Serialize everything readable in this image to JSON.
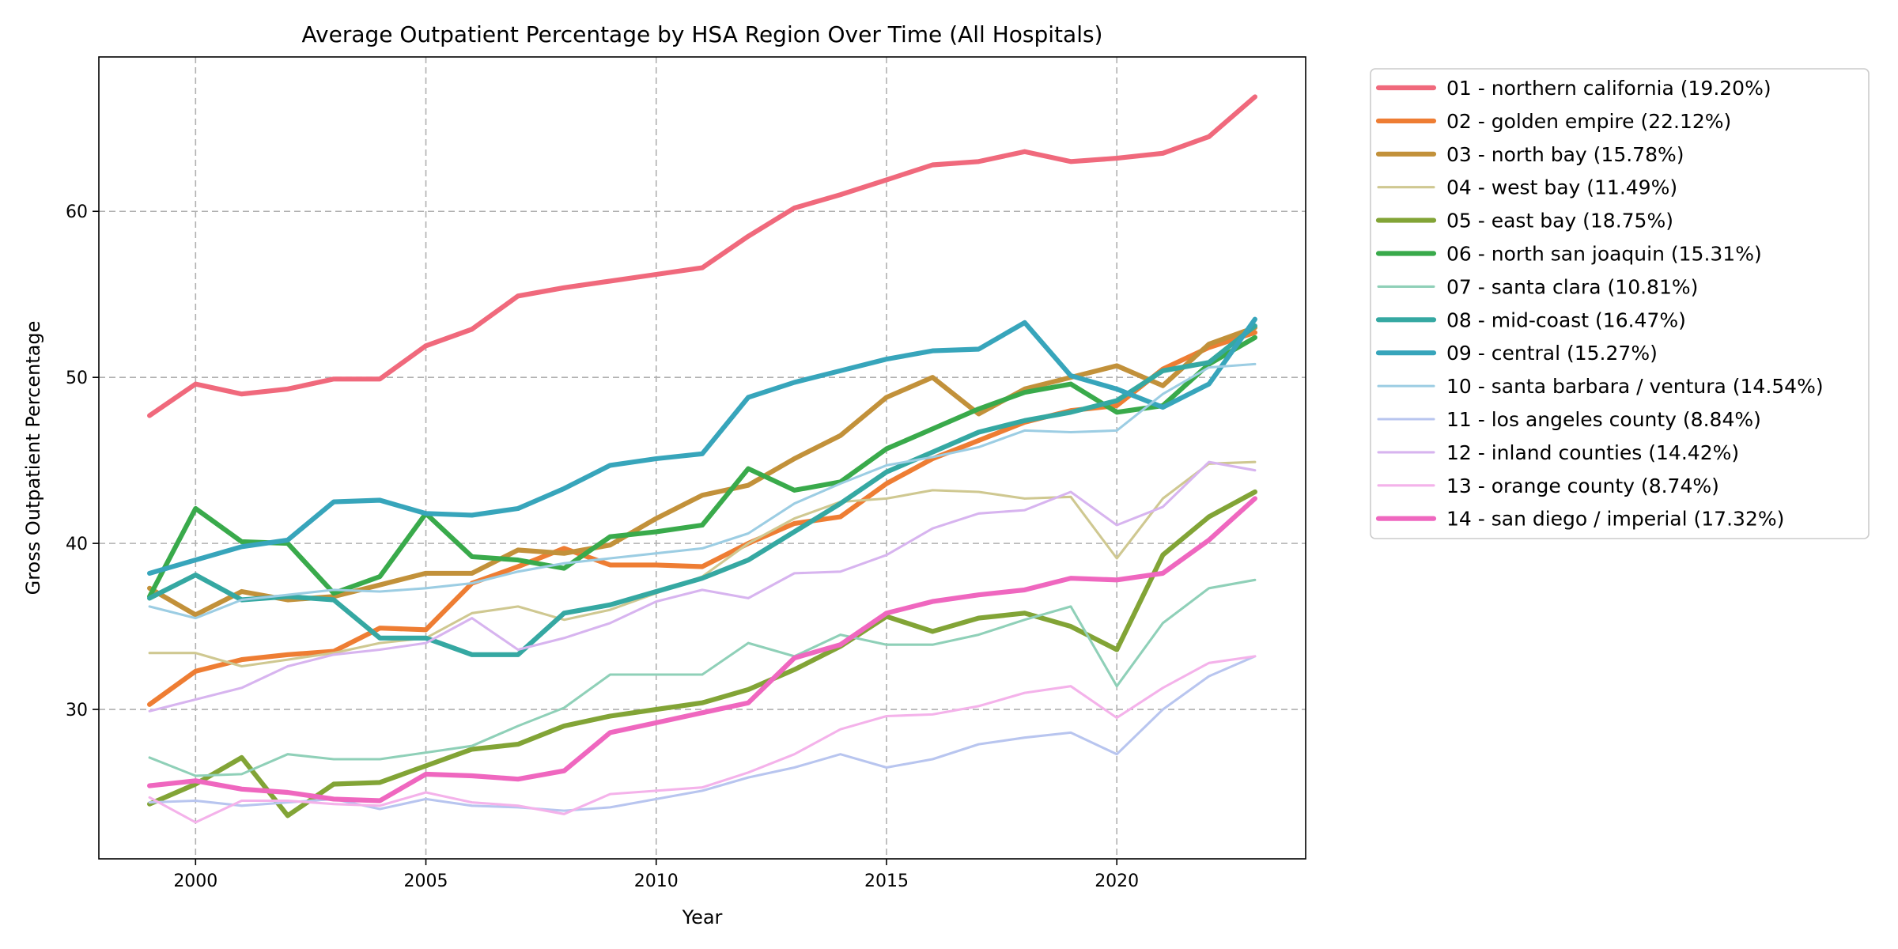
{
  "chart_data": {
    "type": "line",
    "title": "Average Outpatient Percentage by HSA Region Over Time (All Hospitals)",
    "xlabel": "Year",
    "ylabel": "Gross Outpatient Percentage",
    "xlim": [
      1997.9,
      2024.1
    ],
    "ylim": [
      21.0,
      69.3
    ],
    "xticks": [
      2000,
      2005,
      2010,
      2015,
      2020
    ],
    "yticks": [
      30,
      40,
      50,
      60
    ],
    "grid": true,
    "legend_position": "outside-right",
    "x": [
      1999,
      2000,
      2001,
      2002,
      2003,
      2004,
      2005,
      2006,
      2007,
      2008,
      2009,
      2010,
      2011,
      2012,
      2013,
      2014,
      2015,
      2016,
      2017,
      2018,
      2019,
      2020,
      2021,
      2022,
      2023
    ],
    "series": [
      {
        "name": "01 - northern california (19.20%)",
        "color": "#f0697c",
        "width": 3,
        "values": [
          47.7,
          49.6,
          49.0,
          49.3,
          49.9,
          49.9,
          51.9,
          52.9,
          54.9,
          55.4,
          55.8,
          56.2,
          56.6,
          58.5,
          60.2,
          61.0,
          61.9,
          62.8,
          63.0,
          63.6,
          63.0,
          63.2,
          63.5,
          64.5,
          66.9
        ]
      },
      {
        "name": "02 - golden empire (22.12%)",
        "color": "#ee7d33",
        "width": 3,
        "values": [
          30.3,
          32.3,
          33.0,
          33.3,
          33.5,
          34.9,
          34.8,
          37.6,
          38.6,
          39.7,
          38.7,
          38.7,
          38.6,
          40.0,
          41.2,
          41.6,
          43.6,
          45.1,
          46.2,
          47.3,
          48.0,
          48.3,
          50.5,
          51.8,
          52.7
        ]
      },
      {
        "name": "03 - north bay (15.78%)",
        "color": "#c2913a",
        "width": 3,
        "values": [
          37.3,
          35.7,
          37.1,
          36.6,
          36.8,
          37.5,
          38.2,
          38.2,
          39.6,
          39.4,
          39.9,
          41.5,
          42.9,
          43.5,
          45.1,
          46.5,
          48.8,
          50.0,
          47.8,
          49.3,
          50.0,
          50.7,
          49.5,
          52.0,
          53.0
        ]
      },
      {
        "name": "04 - west bay (11.49%)",
        "color": "#cfc891",
        "width": 1.5,
        "values": [
          33.4,
          33.4,
          32.6,
          33.0,
          33.4,
          34.0,
          34.3,
          35.8,
          36.2,
          35.4,
          36.0,
          37.0,
          38.0,
          40.0,
          41.5,
          42.5,
          42.7,
          43.2,
          43.1,
          42.7,
          42.8,
          39.1,
          42.7,
          44.8,
          44.9
        ]
      },
      {
        "name": "05 - east bay (18.75%)",
        "color": "#82a436",
        "width": 3,
        "values": [
          24.3,
          25.5,
          27.1,
          23.6,
          25.5,
          25.6,
          26.6,
          27.6,
          27.9,
          29.0,
          29.6,
          30.0,
          30.4,
          31.2,
          32.4,
          33.8,
          35.6,
          34.7,
          35.5,
          35.8,
          35.0,
          33.6,
          39.3,
          41.6,
          43.1
        ]
      },
      {
        "name": "06 - north san joaquin (15.31%)",
        "color": "#39aa4b",
        "width": 3,
        "values": [
          36.8,
          42.1,
          40.1,
          40.0,
          37.0,
          38.0,
          41.8,
          39.2,
          39.0,
          38.5,
          40.4,
          40.7,
          41.1,
          44.5,
          43.2,
          43.7,
          45.7,
          46.9,
          48.1,
          49.1,
          49.6,
          47.9,
          48.3,
          50.8,
          52.4
        ]
      },
      {
        "name": "07 - santa clara (10.81%)",
        "color": "#8fd0b8",
        "width": 1.5,
        "values": [
          27.1,
          26.0,
          26.1,
          27.3,
          27.0,
          27.0,
          27.4,
          27.8,
          29.0,
          30.1,
          32.1,
          32.1,
          32.1,
          34.0,
          33.2,
          34.5,
          33.9,
          33.9,
          34.5,
          35.4,
          36.2,
          31.4,
          35.2,
          37.3,
          37.8
        ]
      },
      {
        "name": "08 - mid-coast (16.47%)",
        "color": "#35a8a2",
        "width": 3,
        "values": [
          36.7,
          38.1,
          36.6,
          36.8,
          36.6,
          34.3,
          34.3,
          33.3,
          33.3,
          35.8,
          36.3,
          37.1,
          37.9,
          39.0,
          40.7,
          42.4,
          44.3,
          45.5,
          46.7,
          47.4,
          47.9,
          48.6,
          50.4,
          50.9,
          53.1
        ]
      },
      {
        "name": "09 - central (15.27%)",
        "color": "#37a5bb",
        "width": 3,
        "values": [
          38.2,
          39.0,
          39.8,
          40.2,
          42.5,
          42.6,
          41.8,
          41.7,
          42.1,
          43.3,
          44.7,
          45.1,
          45.4,
          48.8,
          49.7,
          50.4,
          51.1,
          51.6,
          51.7,
          53.3,
          50.1,
          49.3,
          48.2,
          49.6,
          53.5
        ]
      },
      {
        "name": "10 - santa barbara / ventura (14.54%)",
        "color": "#9ccde3",
        "width": 1.5,
        "values": [
          36.2,
          35.5,
          36.6,
          36.9,
          37.2,
          37.1,
          37.3,
          37.6,
          38.3,
          38.8,
          39.1,
          39.4,
          39.7,
          40.6,
          42.4,
          43.6,
          44.7,
          45.2,
          45.8,
          46.8,
          46.7,
          46.8,
          49.0,
          50.6,
          50.8
        ]
      },
      {
        "name": "11 - los angeles county (8.84%)",
        "color": "#b8c5ef",
        "width": 1.5,
        "values": [
          24.4,
          24.5,
          24.2,
          24.4,
          24.6,
          24.0,
          24.6,
          24.2,
          24.1,
          23.9,
          24.1,
          24.6,
          25.1,
          25.9,
          26.5,
          27.3,
          26.5,
          27.0,
          27.9,
          28.3,
          28.6,
          27.3,
          30.0,
          32.0,
          33.2
        ]
      },
      {
        "name": "12 - inland counties (14.42%)",
        "color": "#d7b4ef",
        "width": 1.5,
        "values": [
          29.9,
          30.6,
          31.3,
          32.6,
          33.3,
          33.6,
          34.0,
          35.5,
          33.6,
          34.3,
          35.2,
          36.5,
          37.2,
          36.7,
          38.2,
          38.3,
          39.3,
          40.9,
          41.8,
          42.0,
          43.1,
          41.1,
          42.2,
          44.9,
          44.4
        ]
      },
      {
        "name": "13 - orange county (8.74%)",
        "color": "#f4b2ea",
        "width": 1.5,
        "values": [
          24.7,
          23.2,
          24.5,
          24.5,
          24.3,
          24.2,
          25.0,
          24.4,
          24.2,
          23.7,
          24.9,
          25.1,
          25.3,
          26.2,
          27.3,
          28.8,
          29.6,
          29.7,
          30.2,
          31.0,
          31.4,
          29.5,
          31.3,
          32.8,
          33.2
        ]
      },
      {
        "name": "14 - san diego / imperial (17.32%)",
        "color": "#ef67bf",
        "width": 3,
        "values": [
          25.4,
          25.7,
          25.2,
          25.0,
          24.6,
          24.5,
          26.1,
          26.0,
          25.8,
          26.3,
          28.6,
          29.2,
          29.8,
          30.4,
          33.1,
          33.9,
          35.8,
          36.5,
          36.9,
          37.2,
          37.9,
          37.8,
          38.2,
          40.2,
          42.7
        ]
      }
    ]
  }
}
